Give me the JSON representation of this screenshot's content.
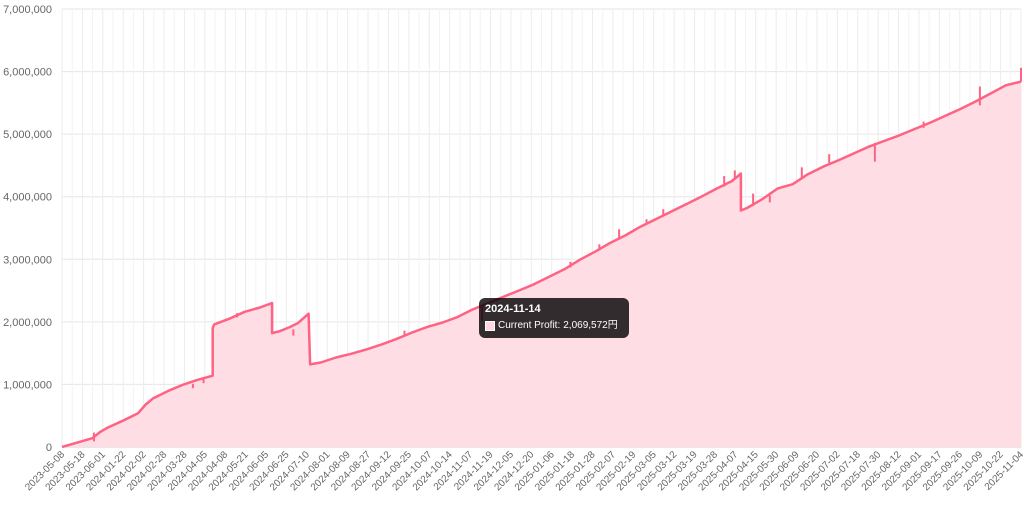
{
  "chart_data": {
    "type": "area",
    "title": "",
    "xlabel": "",
    "ylabel": "",
    "ylim": [
      0,
      7000000
    ],
    "y_ticks": [
      "0",
      "1,000,000",
      "2,000,000",
      "3,000,000",
      "4,000,000",
      "5,000,000",
      "6,000,000",
      "7,000,000"
    ],
    "x_ticks": [
      "2023-05-08",
      "2023-05-18",
      "2023-06-01",
      "2024-01-22",
      "2024-02-02",
      "2024-02-28",
      "2024-03-28",
      "2024-04-05",
      "2024-04-08",
      "2024-05-21",
      "2024-06-05",
      "2024-06-25",
      "2024-07-10",
      "2024-08-01",
      "2024-08-09",
      "2024-08-27",
      "2024-09-12",
      "2024-09-25",
      "2024-10-07",
      "2024-10-14",
      "2024-11-07",
      "2024-11-19",
      "2024-12-05",
      "2024-12-20",
      "2025-01-06",
      "2025-01-18",
      "2025-01-28",
      "2025-02-07",
      "2025-02-19",
      "2025-03-05",
      "2025-03-12",
      "2025-03-19",
      "2025-03-28",
      "2025-04-07",
      "2025-04-15",
      "2025-05-30",
      "2025-06-09",
      "2025-06-20",
      "2025-07-02",
      "2025-07-18",
      "2025-07-30",
      "2025-08-12",
      "2025-09-01",
      "2025-09-17",
      "2025-09-26",
      "2025-10-09",
      "2025-10-22",
      "2025-11-04"
    ],
    "grid": true,
    "legend": "none",
    "series": [
      {
        "name": "Current Profit",
        "color": "#ff6384",
        "fill": "#ffdde4",
        "points": [
          [
            0,
            0
          ],
          [
            1,
            70000
          ],
          [
            2,
            140000
          ],
          [
            2.5,
            240000
          ],
          [
            3,
            310000
          ],
          [
            4,
            420000
          ],
          [
            5,
            540000
          ],
          [
            5.5,
            680000
          ],
          [
            6,
            780000
          ],
          [
            7,
            900000
          ],
          [
            8,
            1000000
          ],
          [
            9,
            1080000
          ],
          [
            9.9,
            1140000
          ],
          [
            9.9,
            1900000
          ],
          [
            10,
            1960000
          ],
          [
            11,
            2050000
          ],
          [
            12,
            2160000
          ],
          [
            13,
            2230000
          ],
          [
            13.8,
            2300000
          ],
          [
            13.8,
            1820000
          ],
          [
            14.3,
            1850000
          ],
          [
            15,
            1920000
          ],
          [
            15.5,
            1980000
          ],
          [
            16.2,
            2130000
          ],
          [
            16.3,
            1320000
          ],
          [
            17,
            1350000
          ],
          [
            18,
            1430000
          ],
          [
            19,
            1490000
          ],
          [
            20,
            1560000
          ],
          [
            21,
            1640000
          ],
          [
            22,
            1730000
          ],
          [
            23,
            1830000
          ],
          [
            24,
            1920000
          ],
          [
            25,
            1990000
          ],
          [
            26,
            2080000
          ],
          [
            27,
            2200000
          ],
          [
            28,
            2300000
          ],
          [
            29,
            2400000
          ],
          [
            30,
            2500000
          ],
          [
            31,
            2600000
          ],
          [
            32,
            2720000
          ],
          [
            33,
            2840000
          ],
          [
            34,
            2990000
          ],
          [
            35,
            3120000
          ],
          [
            36,
            3260000
          ],
          [
            37,
            3380000
          ],
          [
            38,
            3520000
          ],
          [
            39,
            3640000
          ],
          [
            40,
            3760000
          ],
          [
            41,
            3880000
          ],
          [
            42,
            4000000
          ],
          [
            43,
            4130000
          ],
          [
            44,
            4250000
          ],
          [
            44.6,
            4370000
          ],
          [
            44.6,
            3780000
          ],
          [
            45,
            3820000
          ],
          [
            46,
            3960000
          ],
          [
            47,
            4130000
          ],
          [
            48,
            4200000
          ],
          [
            49,
            4360000
          ],
          [
            50,
            4480000
          ],
          [
            51,
            4580000
          ],
          [
            52,
            4690000
          ],
          [
            53,
            4800000
          ],
          [
            54,
            4890000
          ],
          [
            55,
            4980000
          ],
          [
            56,
            5080000
          ],
          [
            57,
            5180000
          ],
          [
            58,
            5290000
          ],
          [
            59,
            5400000
          ],
          [
            60,
            5520000
          ],
          [
            61,
            5650000
          ],
          [
            62,
            5780000
          ],
          [
            63,
            5840000
          ]
        ],
        "spikes": [
          [
            2.1,
            90000,
            230000
          ],
          [
            8.6,
            940000,
            1010000
          ],
          [
            9.3,
            1020000,
            1100000
          ],
          [
            11.5,
            2070000,
            2140000
          ],
          [
            15.2,
            1780000,
            1880000
          ],
          [
            22.5,
            1790000,
            1860000
          ],
          [
            27.6,
            2020000,
            2250000
          ],
          [
            33.4,
            2870000,
            2960000
          ],
          [
            35.3,
            3140000,
            3240000
          ],
          [
            36.6,
            3330000,
            3480000
          ],
          [
            38.4,
            3580000,
            3640000
          ],
          [
            39.5,
            3710000,
            3800000
          ],
          [
            43.5,
            4160000,
            4330000
          ],
          [
            44.2,
            4280000,
            4420000
          ],
          [
            45.4,
            3850000,
            4050000
          ],
          [
            46.5,
            3910000,
            4020000
          ],
          [
            48.6,
            4300000,
            4470000
          ],
          [
            50.4,
            4540000,
            4680000
          ],
          [
            53.4,
            4560000,
            4860000
          ],
          [
            56.6,
            5100000,
            5200000
          ],
          [
            60.3,
            5460000,
            5760000
          ],
          [
            63,
            5840000,
            6060000
          ]
        ]
      }
    ]
  },
  "tooltip": {
    "title": "2024-11-14",
    "label": "Current Profit",
    "value": "2,069,572円"
  }
}
